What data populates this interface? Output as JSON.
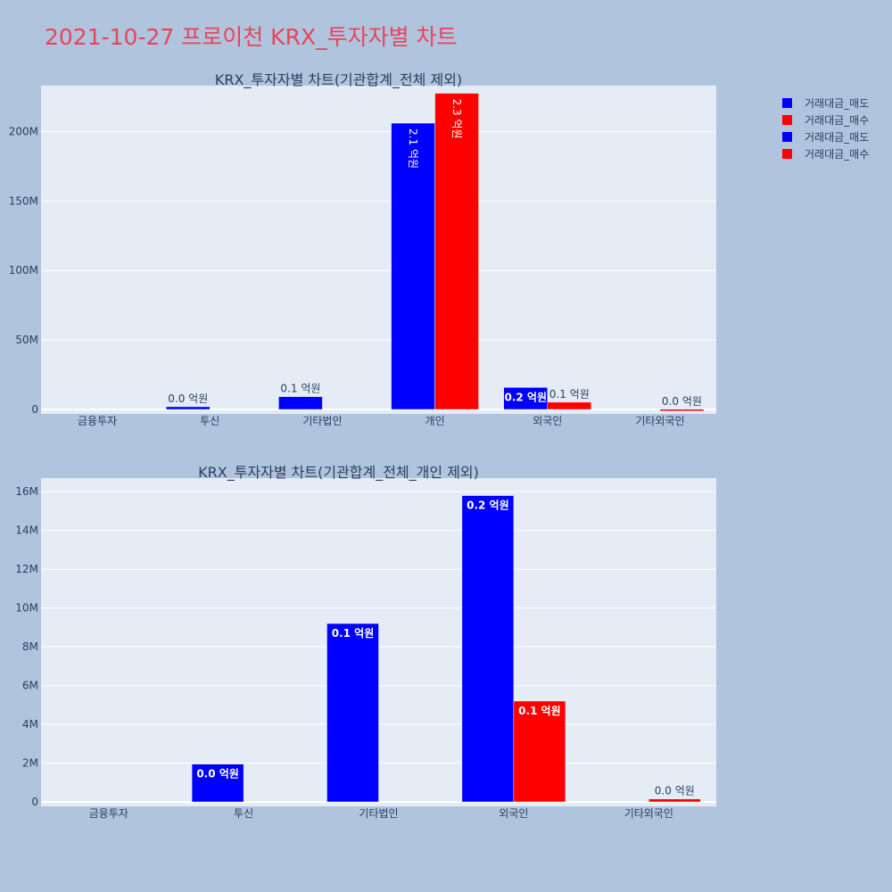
{
  "page": {
    "title": "2021-10-27 프로이천 KRX_투자자별 차트"
  },
  "colors": {
    "sell": "#0000ff",
    "buy": "#ff0000",
    "plot_bg": "#e5ecf6",
    "page_bg": "#b0c4de",
    "title": "#e8455a"
  },
  "legend": {
    "items": [
      {
        "label": "거래대금_매도",
        "color": "#0000ff"
      },
      {
        "label": "거래대금_매수",
        "color": "#ff0000"
      },
      {
        "label": "거래대금_매도",
        "color": "#0000ff"
      },
      {
        "label": "거래대금_매수",
        "color": "#ff0000"
      }
    ]
  },
  "chart_data": [
    {
      "type": "bar",
      "title": "KRX_투자자별 차트(기관합계_전체 제외)",
      "categories": [
        "금융투자",
        "투신",
        "기타법인",
        "개인",
        "외국인",
        "기타외국인"
      ],
      "ylim": [
        0,
        233000000
      ],
      "yticks": [
        0,
        50000000,
        100000000,
        150000000,
        200000000
      ],
      "ytick_labels": [
        "0",
        "50M",
        "100M",
        "150M",
        "200M"
      ],
      "grid": true,
      "series": [
        {
          "name": "거래대금_매도",
          "color": "#0000ff",
          "values": [
            0,
            1950000,
            9200000,
            206000000,
            15800000,
            0
          ],
          "labels": [
            "",
            "0.0 억원",
            "0.1 억원",
            "2.1 억원",
            "0.2 억원",
            ""
          ],
          "label_pos": [
            "",
            "outside",
            "outside",
            "inside-vertical",
            "inside",
            ""
          ]
        },
        {
          "name": "거래대금_매수",
          "color": "#ff0000",
          "values": [
            0,
            0,
            0,
            227500000,
            5200000,
            150000
          ],
          "labels": [
            "",
            "",
            "",
            "2.3 억원",
            "0.1 억원",
            "0.0 억원"
          ],
          "label_pos": [
            "",
            "",
            "",
            "inside-vertical",
            "outside",
            "outside"
          ]
        }
      ]
    },
    {
      "type": "bar",
      "title": "KRX_투자자별 차트(기관합계_전체_개인 제외)",
      "categories": [
        "금융투자",
        "투신",
        "기타법인",
        "외국인",
        "기타외국인"
      ],
      "ylim": [
        0,
        16700000
      ],
      "yticks": [
        0,
        2000000,
        4000000,
        6000000,
        8000000,
        10000000,
        12000000,
        14000000,
        16000000
      ],
      "ytick_labels": [
        "0",
        "2M",
        "4M",
        "6M",
        "8M",
        "10M",
        "12M",
        "14M",
        "16M"
      ],
      "grid": true,
      "series": [
        {
          "name": "거래대금_매도",
          "color": "#0000ff",
          "values": [
            0,
            1950000,
            9200000,
            15800000,
            0
          ],
          "labels": [
            "",
            "0.0 억원",
            "0.1 억원",
            "0.2 억원",
            ""
          ],
          "label_pos": [
            "",
            "inside",
            "inside",
            "inside",
            ""
          ]
        },
        {
          "name": "거래대금_매수",
          "color": "#ff0000",
          "values": [
            0,
            0,
            0,
            5200000,
            150000
          ],
          "labels": [
            "",
            "",
            "",
            "0.1 억원",
            "0.0 억원"
          ],
          "label_pos": [
            "",
            "",
            "",
            "inside",
            "outside"
          ]
        }
      ]
    }
  ]
}
